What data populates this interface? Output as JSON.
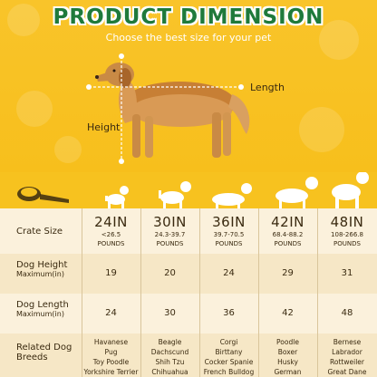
{
  "header": {
    "title": "PRODUCT DIMENSION",
    "subtitle": "Choose the best size for your pet"
  },
  "diagram": {
    "length_label": "Length",
    "height_label": "Height"
  },
  "table": {
    "row_labels": {
      "crate_size": "Crate Size",
      "dog_height": "Dog Height",
      "dog_height_unit": "Maximum(in)",
      "dog_length": "Dog Length",
      "dog_length_unit": "Maximum(in)",
      "breeds_line1": "Related Dog",
      "breeds_line2": "Breeds"
    },
    "columns": [
      {
        "size": "24IN",
        "range": "<26.5",
        "pounds": "POUNDS",
        "height": "19",
        "length": "24",
        "breeds": [
          "Havanese",
          "Pug",
          "Toy Poodle",
          "Yorkshire Terrier"
        ]
      },
      {
        "size": "30IN",
        "range": "24.3-39.7",
        "pounds": "POUNDS",
        "height": "20",
        "length": "30",
        "breeds": [
          "Beagle",
          "Dachscund",
          "Shih Tzu",
          "Chihuahua"
        ]
      },
      {
        "size": "36IN",
        "range": "39.7-70.5",
        "pounds": "POUNDS",
        "height": "24",
        "length": "36",
        "breeds": [
          "Corgi",
          "Birttany",
          "Cocker Spanie",
          "French Bulldog"
        ]
      },
      {
        "size": "42IN",
        "range": "68.4-88.2",
        "pounds": "POUNDS",
        "height": "29",
        "length": "42",
        "breeds": [
          "Poodle",
          "Boxer",
          "Husky",
          "German SHepherd"
        ]
      },
      {
        "size": "48IN",
        "range": "108-266.8",
        "pounds": "POUNDS",
        "height": "31",
        "length": "48",
        "breeds": [
          "Bernese",
          "Labrador",
          "Rottweiler",
          "Great Dane"
        ]
      }
    ]
  },
  "colors": {
    "background": "#f7c21f",
    "title_green": "#1f7a3b",
    "table_light": "#fbf1dc",
    "table_dark": "#f6e7c6",
    "text": "#3a2a10"
  },
  "icons": [
    "paw-print-icon",
    "tape-measure-icon",
    "dog-silhouette-icon"
  ]
}
